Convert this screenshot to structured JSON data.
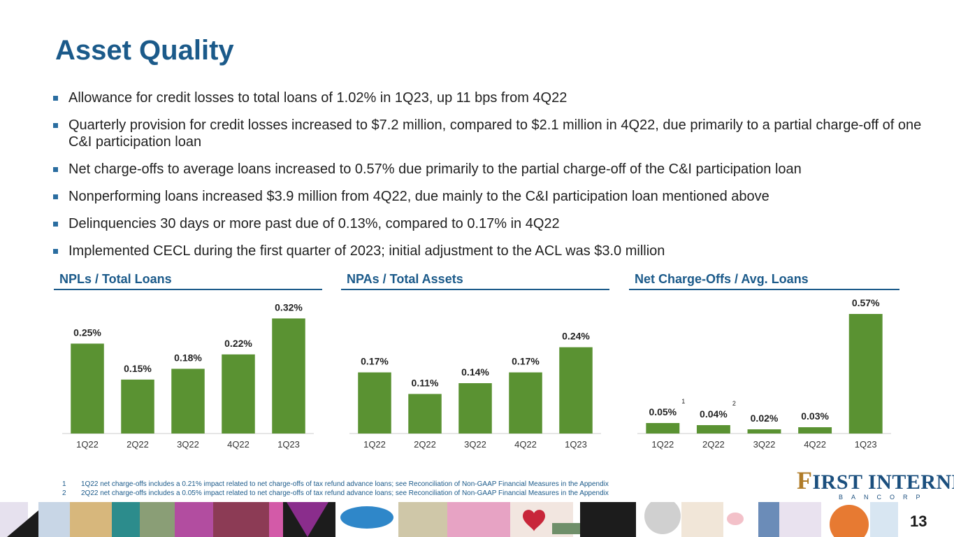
{
  "title": "Asset Quality",
  "bullets": [
    "Allowance for credit losses to total loans of 1.02% in 1Q23, up 11 bps from 4Q22",
    "Quarterly provision for credit losses increased to $7.2 million, compared to $2.1 million in 4Q22, due primarily to a partial charge-off of one C&I participation loan",
    "Net charge-offs to average loans increased to 0.57% due primarily to the partial charge-off of the C&I participation loan",
    "Nonperforming loans increased $3.9 million from 4Q22, due mainly to the C&I participation loan mentioned above",
    "Delinquencies 30 days or more past due of 0.13%, compared to 0.17% in 4Q22",
    "Implemented CECL during the first quarter of 2023; initial adjustment to the ACL was $3.0 million"
  ],
  "chart_data": [
    {
      "type": "bar",
      "title": "NPLs / Total Loans",
      "categories": [
        "1Q22",
        "2Q22",
        "3Q22",
        "4Q22",
        "1Q23"
      ],
      "values": [
        0.25,
        0.15,
        0.18,
        0.22,
        0.32
      ],
      "labels": [
        "0.25%",
        "0.15%",
        "0.18%",
        "0.22%",
        "0.32%"
      ],
      "footnote_marks": [
        "",
        "",
        "",
        "",
        ""
      ],
      "ylim": [
        0,
        0.35
      ],
      "bar_color": "#5a9232"
    },
    {
      "type": "bar",
      "title": "NPAs / Total Assets",
      "categories": [
        "1Q22",
        "2Q22",
        "3Q22",
        "4Q22",
        "1Q23"
      ],
      "values": [
        0.17,
        0.11,
        0.14,
        0.17,
        0.24
      ],
      "labels": [
        "0.17%",
        "0.11%",
        "0.14%",
        "0.17%",
        "0.24%"
      ],
      "footnote_marks": [
        "",
        "",
        "",
        "",
        ""
      ],
      "ylim": [
        0,
        0.35
      ],
      "bar_color": "#5a9232"
    },
    {
      "type": "bar",
      "title": "Net Charge-Offs / Avg. Loans",
      "categories": [
        "1Q22",
        "2Q22",
        "3Q22",
        "4Q22",
        "1Q23"
      ],
      "values": [
        0.05,
        0.04,
        0.02,
        0.03,
        0.57
      ],
      "labels": [
        "0.05%",
        "0.04%",
        "0.02%",
        "0.03%",
        "0.57%"
      ],
      "footnote_marks": [
        "1",
        "2",
        "",
        "",
        ""
      ],
      "ylim": [
        0,
        0.6
      ],
      "bar_color": "#5a9232"
    }
  ],
  "footnotes": [
    {
      "num": "1",
      "text": "1Q22 net charge-offs includes a 0.21% impact related to net charge-offs of tax refund advance loans; see Reconciliation of Non-GAAP Financial Measures in the Appendix"
    },
    {
      "num": "2",
      "text": "2Q22 net charge-offs includes a 0.05% impact related to net charge-offs of tax refund advance loans; see Reconciliation of Non-GAAP Financial Measures in the Appendix"
    }
  ],
  "logo": {
    "initial": "F",
    "main": "IRST INTERNET",
    "sub": "BANCORP"
  },
  "page_number": "13",
  "colors": {
    "brand_blue": "#1b5a8a",
    "bar_green": "#5a9232",
    "logo_gold": "#b07c28"
  }
}
